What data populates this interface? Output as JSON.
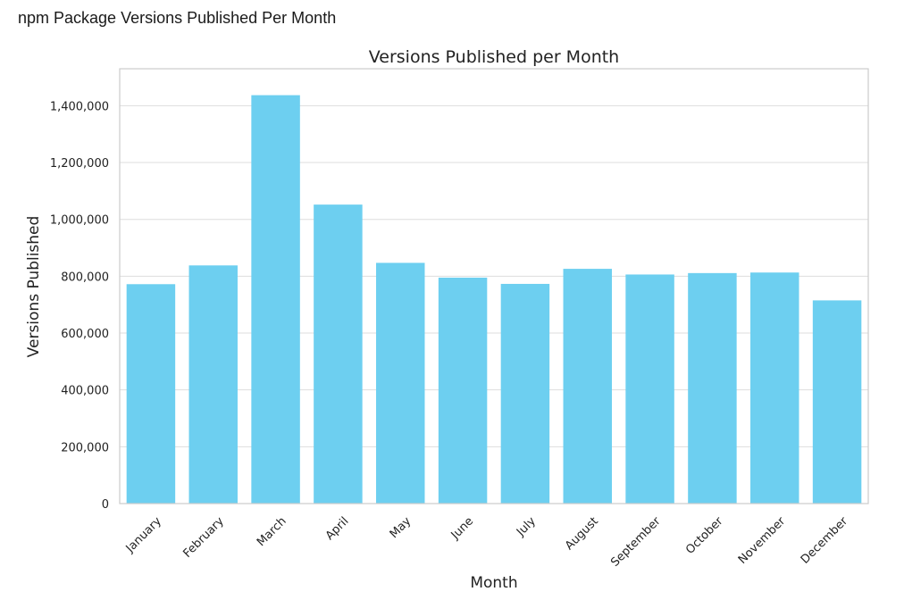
{
  "page": {
    "title": "npm Package Versions Published Per Month"
  },
  "chart_data": {
    "type": "bar",
    "title": "Versions Published per Month",
    "xlabel": "Month",
    "ylabel": "Versions Published",
    "categories": [
      "January",
      "February",
      "March",
      "April",
      "May",
      "June",
      "July",
      "August",
      "September",
      "October",
      "November",
      "December"
    ],
    "values": [
      772000,
      838000,
      1437000,
      1052000,
      847000,
      795000,
      773000,
      826000,
      806000,
      811000,
      813000,
      715000
    ],
    "ylim": [
      0,
      1530000
    ],
    "yticks": [
      0,
      200000,
      400000,
      600000,
      800000,
      1000000,
      1200000,
      1400000
    ],
    "ytick_labels": [
      "0",
      "200,000",
      "400,000",
      "600,000",
      "800,000",
      "1,000,000",
      "1,200,000",
      "1,400,000"
    ],
    "bar_color": "#6dcff0",
    "grid": true
  }
}
